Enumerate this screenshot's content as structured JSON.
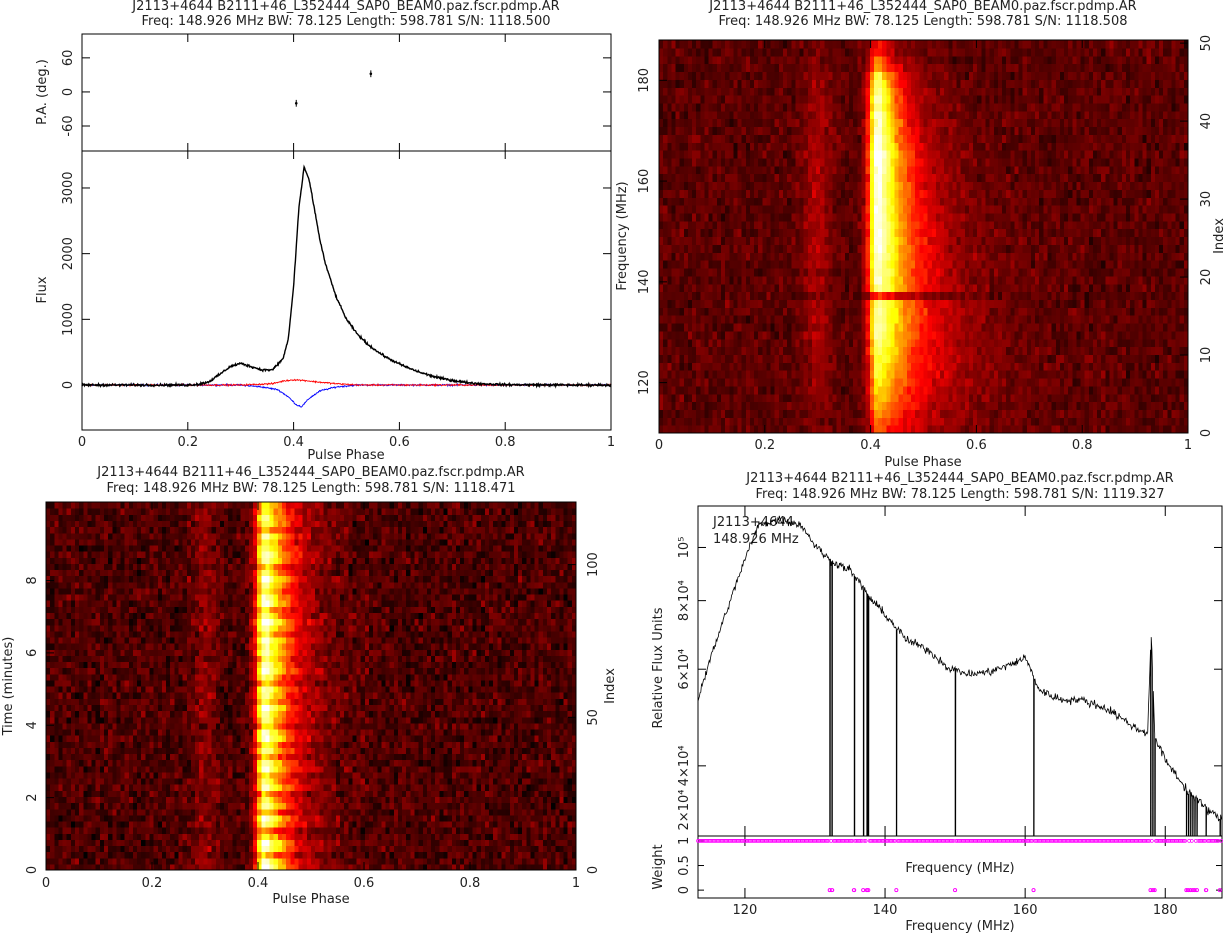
{
  "chart_data": [
    {
      "type": "line",
      "title": "J2113+4644  B2111+46_L352444_SAP0_BEAM0.paz.fscr.pdmp.AR",
      "subtitle": "Freq: 148.926 MHz BW: 78.125 Length: 598.781 S/N: 1118.500",
      "pa": {
        "ylabel": "P.A. (deg.)",
        "ylim": [
          -104,
          102
        ],
        "yticks": [
          -60,
          0,
          60
        ],
        "x": [
          0.405,
          0.546
        ],
        "y": [
          -20,
          32
        ],
        "yerr": [
          6,
          6
        ]
      },
      "xlabel": "Pulse Phase",
      "xlim": [
        0,
        1
      ],
      "xticks": [
        0,
        0.2,
        0.4,
        0.6,
        0.8,
        1
      ],
      "ylabel": "Flux",
      "ylim": [
        -685,
        3563
      ],
      "yticks": [
        0,
        1000,
        2000,
        3000
      ],
      "series": [
        {
          "color": "#000000",
          "x": [
            0,
            0.1,
            0.2,
            0.22,
            0.24,
            0.26,
            0.28,
            0.3,
            0.32,
            0.34,
            0.36,
            0.38,
            0.39,
            0.4,
            0.41,
            0.42,
            0.43,
            0.44,
            0.45,
            0.46,
            0.48,
            0.5,
            0.52,
            0.54,
            0.56,
            0.58,
            0.6,
            0.62,
            0.64,
            0.66,
            0.68,
            0.7,
            0.72,
            0.75,
            0.8,
            0.9,
            1
          ],
          "y": [
            0,
            0,
            0,
            10,
            50,
            160,
            280,
            330,
            280,
            230,
            230,
            400,
            700,
            1500,
            2700,
            3320,
            3100,
            2650,
            2200,
            1850,
            1350,
            1000,
            780,
            620,
            500,
            400,
            320,
            250,
            190,
            140,
            100,
            70,
            45,
            20,
            5,
            0,
            0
          ]
        },
        {
          "color": "#ff0000",
          "x": [
            0,
            0.3,
            0.36,
            0.38,
            0.4,
            0.42,
            0.44,
            0.48,
            0.52,
            1
          ],
          "y": [
            0,
            0,
            20,
            60,
            80,
            70,
            50,
            20,
            0,
            0
          ]
        },
        {
          "color": "#0000ff",
          "x": [
            0,
            0.3,
            0.34,
            0.37,
            0.39,
            0.405,
            0.415,
            0.43,
            0.45,
            0.48,
            0.52,
            1
          ],
          "y": [
            0,
            0,
            -30,
            -70,
            -180,
            -300,
            -330,
            -200,
            -90,
            -30,
            0,
            0
          ]
        }
      ]
    },
    {
      "type": "heatmap",
      "title": "J2113+4644  B2111+46_L352444_SAP0_BEAM0.paz.fscr.pdmp.AR",
      "subtitle": "Freq: 148.926 MHz BW: 78.125 Length: 598.781 S/N: 1118.508",
      "xlabel": "Pulse Phase",
      "ylabel": "Frequency (MHz)",
      "y2label": "Index",
      "xlim": [
        0,
        1
      ],
      "xticks": [
        0,
        0.2,
        0.4,
        0.6,
        0.8,
        1
      ],
      "ylim": [
        110,
        188
      ],
      "yticks": [
        120,
        140,
        160,
        180
      ],
      "y2lim": [
        0,
        50.4
      ],
      "y2ticks": [
        0,
        10,
        20,
        30,
        40,
        50
      ],
      "colormap": "heat",
      "pulse_phase": 0.415,
      "channel_gain": [
        0.35,
        0.4,
        0.45,
        0.5,
        0.55,
        0.6,
        0.65,
        0.7,
        0.72,
        0.75,
        0.8,
        0.82,
        0.85,
        0.85,
        0.88,
        0.9,
        0.88,
        0.3,
        0.9,
        0.92,
        0.95,
        0.95,
        0.97,
        1,
        1,
        1,
        1,
        0.98,
        1,
        1,
        1,
        1,
        1,
        1,
        1.05,
        1.1,
        1.0,
        0.98,
        0.95,
        0.95,
        0.95,
        0.9,
        0.9,
        0.85,
        0.8,
        0.75,
        0.5,
        0.45,
        0.3,
        0.25
      ]
    },
    {
      "type": "heatmap",
      "title": "J2113+4644  B2111+46_L352444_SAP0_BEAM0.paz.fscr.pdmp.AR",
      "subtitle": "Freq: 148.926 MHz BW: 78.125 Length: 598.781 S/N: 1118.471",
      "xlabel": "Pulse Phase",
      "ylabel": "Time (minutes)",
      "y2label": "Index",
      "xlim": [
        0,
        1
      ],
      "xticks": [
        0,
        0.2,
        0.4,
        0.6,
        0.8,
        1
      ],
      "ylim": [
        0,
        10.17
      ],
      "yticks": [
        0,
        2,
        4,
        6,
        8
      ],
      "y2lim": [
        0,
        120.5
      ],
      "y2ticks": [
        0,
        50,
        100
      ],
      "colormap": "heat",
      "pulse_phase": 0.415,
      "subint_gain": [
        1.0,
        0.9,
        0.6,
        0.95,
        1.05,
        0.7,
        0.5,
        0.85,
        1.0,
        0.6,
        0.9,
        0.75,
        0.55,
        0.95,
        0.8,
        0.65,
        1.0,
        0.9,
        0.6,
        0.85,
        0.7,
        1.0,
        0.95,
        0.6,
        0.8,
        0.9,
        1.05,
        0.7,
        0.85,
        0.95,
        0.6,
        0.8,
        1.0,
        0.9,
        0.75,
        0.95,
        0.85,
        1.0,
        0.7,
        0.9,
        1.05,
        0.8,
        0.65,
        0.95,
        0.9,
        0.7,
        0.85,
        1.0,
        0.75,
        0.6,
        0.9,
        0.95,
        0.8,
        0.7,
        0.85,
        0.6,
        0.75,
        0.8,
        0.7,
        0.65
      ]
    },
    {
      "type": "line",
      "title": "J2113+4644  B2111+46_L352444_SAP0_BEAM0.paz.fscr.pdmp.AR",
      "subtitle": "Freq: 148.926 MHz BW: 78.125 Length: 598.781 S/N: 1119.327",
      "annotation": [
        "J2113+4644",
        "148.926 MHz"
      ],
      "xlabel": "Frequency (MHz)",
      "xlim": [
        113.3,
        188.1
      ],
      "xticks": [
        120,
        140,
        160,
        180
      ],
      "ylabel": "Relative Flux Units",
      "yscale": "log",
      "ylim": [
        29800,
        119000
      ],
      "yticks": [
        20000,
        40000,
        60000,
        80000,
        100000
      ],
      "ytick_labels": [
        "2×10⁴",
        "4×10⁴",
        "6×10⁴",
        "8×10⁴",
        "10⁵"
      ],
      "color": "#000000",
      "x": [
        113.3,
        116,
        118,
        120,
        122,
        125,
        128,
        130,
        132,
        135,
        138,
        140,
        143,
        146,
        149,
        152,
        155,
        158,
        160,
        162,
        165,
        168,
        172,
        176,
        177.5,
        178,
        178.5,
        180,
        183,
        186,
        188.1
      ],
      "y": [
        52800,
        67900,
        80400,
        95000,
        110000,
        112500,
        110000,
        101000,
        95000,
        91000,
        80400,
        75500,
        67900,
        65200,
        60400,
        58700,
        59400,
        61200,
        63000,
        55000,
        52800,
        52800,
        50600,
        46600,
        46000,
        69000,
        45000,
        41000,
        36200,
        33300,
        31900
      ],
      "flagged_channels_mhz": [
        132.1,
        132.4,
        135.6,
        136.9,
        137.4,
        137.6,
        141.6,
        150,
        161.2,
        177.9,
        178.2,
        178.5,
        183,
        183.3,
        183.6,
        183.9,
        184.2,
        184.5,
        185.8,
        187.8
      ],
      "weights": {
        "ylabel": "Weight",
        "xlabel": "Frequency (MHz)",
        "ylim": [
          -0.16,
          1.1
        ],
        "yticks": [
          0,
          0.5,
          1
        ],
        "unflagged_weight": 1,
        "flagged_weight": 0,
        "color": "#ff00ff"
      }
    }
  ]
}
